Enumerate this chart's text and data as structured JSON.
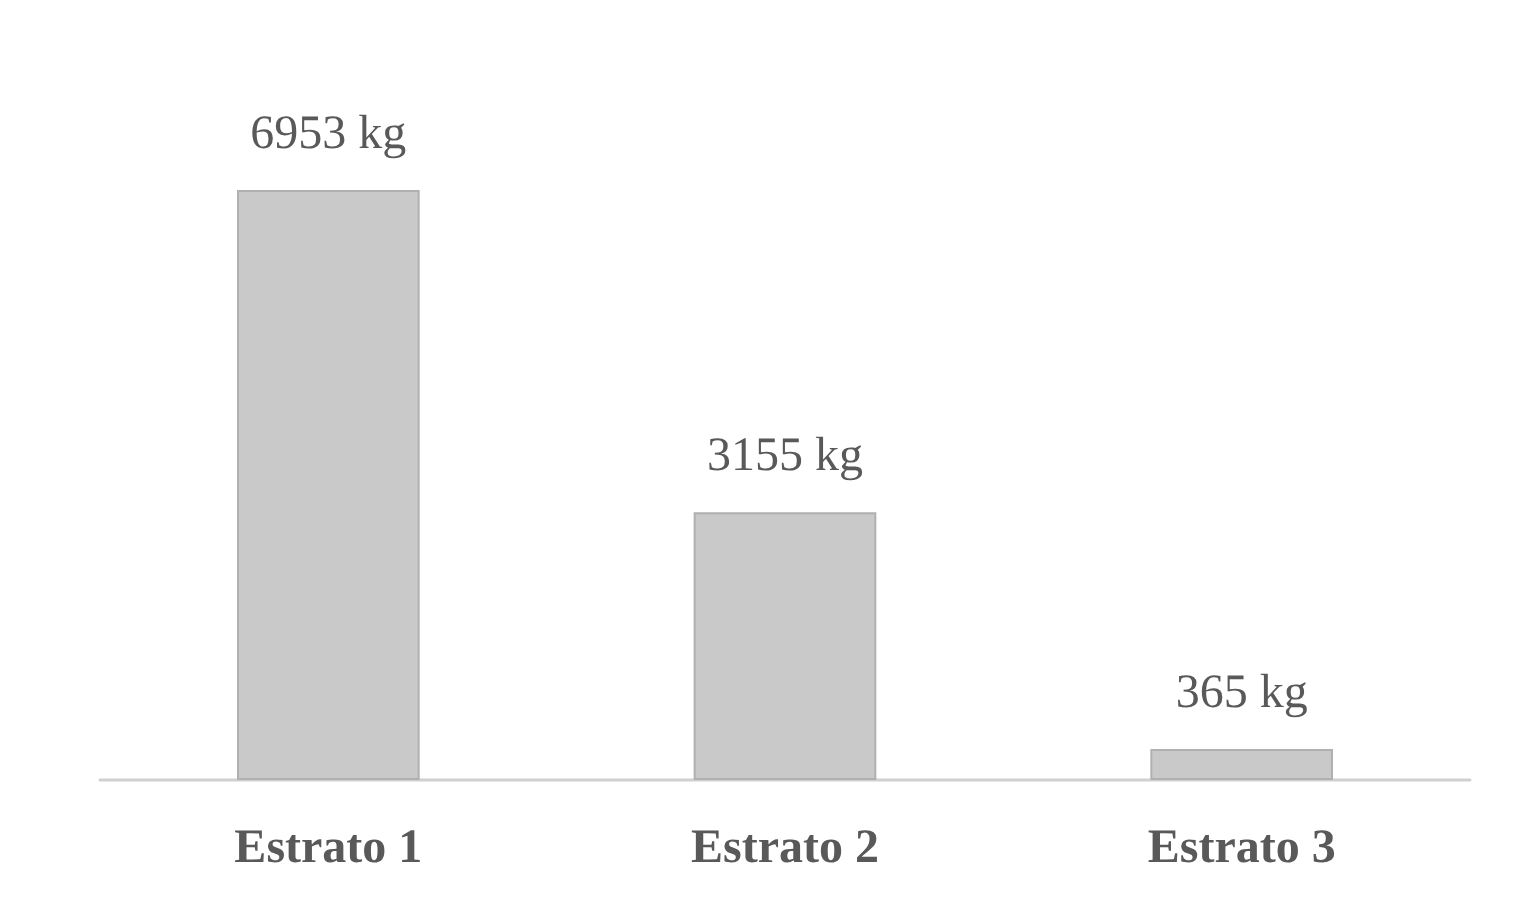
{
  "chart_data": {
    "type": "bar",
    "categories": [
      "Estrato 1",
      "Estrato 2",
      "Estrato 3"
    ],
    "values": [
      6953,
      3155,
      365
    ],
    "value_labels": [
      "6953 kg",
      "3155 kg",
      "365 kg"
    ],
    "color": "#c9c9c9"
  }
}
